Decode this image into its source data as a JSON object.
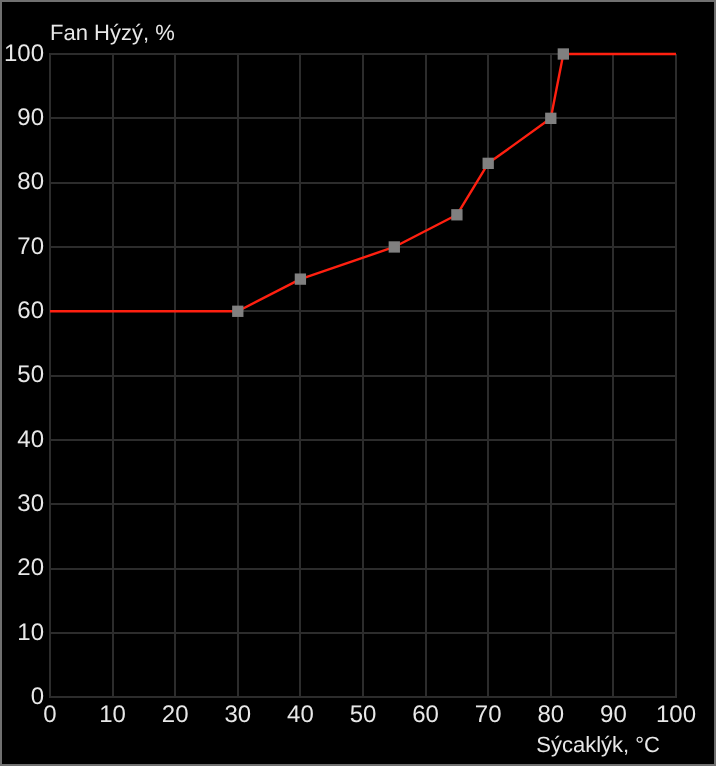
{
  "chart_data": {
    "type": "line",
    "ylabel": "Fan Hýzý, %",
    "xlabel": "Sýcaklýk, °C",
    "x": [
      0,
      30,
      40,
      55,
      65,
      70,
      80,
      82,
      100
    ],
    "series": [
      {
        "color": "#ff2010",
        "marker": "none",
        "values": [
          60,
          60,
          65,
          70,
          75,
          83,
          90,
          100,
          100
        ]
      },
      {
        "type": "scatter",
        "color": "#808080",
        "marker": "square",
        "x": [
          30,
          40,
          55,
          65,
          70,
          80,
          82
        ],
        "values": [
          60,
          65,
          70,
          75,
          83,
          90,
          100
        ]
      }
    ],
    "xlim": [
      0,
      100
    ],
    "xticks": [
      0,
      10,
      20,
      30,
      40,
      50,
      60,
      70,
      80,
      90,
      100
    ],
    "ylim": [
      0,
      100
    ],
    "yticks": [
      0,
      10,
      20,
      30,
      40,
      50,
      60,
      70,
      80,
      90,
      100
    ],
    "grid": true,
    "legend": false
  }
}
